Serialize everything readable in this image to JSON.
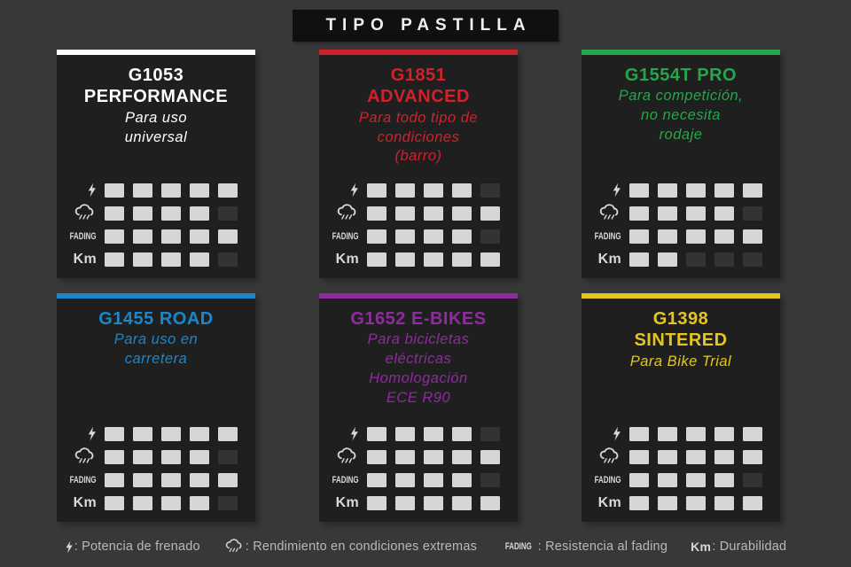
{
  "title": "TIPO PASTILLA",
  "colors": {
    "page_bg": "#383838",
    "card_bg": "#1f1f1f",
    "banner_bg": "#101010",
    "cell_filled": "#d6d6d6",
    "cell_empty": "#333333"
  },
  "rating_max": 5,
  "legend_separator": ": ",
  "metrics": [
    {
      "id": "potencia",
      "icon": "lightning-icon",
      "legend_text": "Potencia de frenado"
    },
    {
      "id": "condiciones",
      "icon": "rain-cloud-icon",
      "legend_text": "Rendimiento en condiciones extremas"
    },
    {
      "id": "fading",
      "icon": "fading-label",
      "label": "FADING",
      "legend_text": "Resistencia al fading"
    },
    {
      "id": "km",
      "icon": "km-label",
      "label": "Km",
      "legend_text": "Durabilidad"
    }
  ],
  "cards": [
    {
      "name": "G1053\nPERFORMANCE",
      "description": "Para uso\nuniversal",
      "accent": "#ffffff",
      "ratings": {
        "potencia": 5,
        "condiciones": 4,
        "fading": 5,
        "km": 4
      }
    },
    {
      "name": "G1851\nADVANCED",
      "description": "Para todo tipo de\ncondiciones\n(barro)",
      "accent": "#d1212a",
      "ratings": {
        "potencia": 4,
        "condiciones": 5,
        "fading": 4,
        "km": 5
      }
    },
    {
      "name": "G1554T PRO",
      "description": "Para competición,\nno necesita\nrodaje",
      "accent": "#28a44c",
      "ratings": {
        "potencia": 5,
        "condiciones": 4,
        "fading": 5,
        "km": 2
      }
    },
    {
      "name": "G1455 ROAD",
      "description": "Para uso en\ncarretera",
      "accent": "#1b87c9",
      "ratings": {
        "potencia": 5,
        "condiciones": 4,
        "fading": 5,
        "km": 4
      }
    },
    {
      "name": "G1652 E-BIKES",
      "description": "Para bicicletas\neléctricas\nHomologación\nECE R90",
      "accent": "#8e2b9e",
      "ratings": {
        "potencia": 4,
        "condiciones": 5,
        "fading": 4,
        "km": 5
      }
    },
    {
      "name": "G1398\nSINTERED",
      "description": "Para Bike Trial",
      "accent": "#e5c620",
      "ratings": {
        "potencia": 5,
        "condiciones": 5,
        "fading": 4,
        "km": 5
      }
    }
  ],
  "chart_data": {
    "type": "table",
    "title": "TIPO PASTILLA",
    "metrics": [
      "Potencia de frenado",
      "Rendimiento en condiciones extremas",
      "Resistencia al fading",
      "Durabilidad"
    ],
    "scale": [
      0,
      5
    ],
    "rows": [
      {
        "name": "G1053 PERFORMANCE",
        "values": [
          5,
          4,
          5,
          4
        ]
      },
      {
        "name": "G1851 ADVANCED",
        "values": [
          4,
          5,
          4,
          5
        ]
      },
      {
        "name": "G1554T PRO",
        "values": [
          5,
          4,
          5,
          2
        ]
      },
      {
        "name": "G1455 ROAD",
        "values": [
          5,
          4,
          5,
          4
        ]
      },
      {
        "name": "G1652 E-BIKES",
        "values": [
          4,
          5,
          4,
          5
        ]
      },
      {
        "name": "G1398 SINTERED",
        "values": [
          5,
          5,
          4,
          5
        ]
      }
    ]
  }
}
